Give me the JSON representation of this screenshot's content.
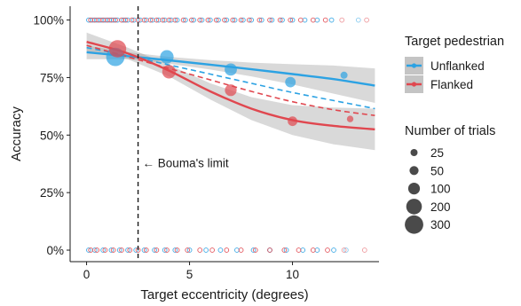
{
  "chart_data": {
    "type": "scatter",
    "xlabel": "Target eccentricity (degrees)",
    "ylabel": "Accuracy",
    "xlim": [
      -0.8,
      14.2
    ],
    "ylim": [
      -0.05,
      1.06
    ],
    "x_ticks": [
      0,
      5,
      10
    ],
    "x_tick_labels": [
      "0",
      "5",
      "10"
    ],
    "y_ticks": [
      0,
      0.25,
      0.5,
      0.75,
      1.0
    ],
    "y_tick_labels": [
      "0%",
      "25%",
      "50%",
      "75%",
      "100%"
    ],
    "grid": false,
    "annotation": {
      "text": "← Bouma's limit",
      "x": 2.5,
      "y": 0.38
    },
    "reference_line": {
      "x": 2.5,
      "style": "dashed"
    },
    "legend_colour": {
      "title": "Target pedestrian",
      "position": "right",
      "entries": [
        {
          "label": "Unflanked",
          "color": "#2ca2e3"
        },
        {
          "label": "Flanked",
          "color": "#e0474f"
        }
      ]
    },
    "legend_size": {
      "title": "Number of trials",
      "position": "right",
      "entries": [
        {
          "label": "25",
          "value": 25
        },
        {
          "label": "50",
          "value": 50
        },
        {
          "label": "100",
          "value": 100
        },
        {
          "label": "200",
          "value": 200
        },
        {
          "label": "300",
          "value": 300
        }
      ]
    },
    "series": [
      {
        "name": "Unflanked",
        "color": "#2ca2e3",
        "binned_means": [
          {
            "x": 1.4,
            "y": 0.84,
            "n": 300
          },
          {
            "x": 3.9,
            "y": 0.84,
            "n": 140
          },
          {
            "x": 7.0,
            "y": 0.785,
            "n": 110
          },
          {
            "x": 9.9,
            "y": 0.73,
            "n": 75
          },
          {
            "x": 12.5,
            "y": 0.76,
            "n": 25
          }
        ],
        "fit": {
          "x": [
            0,
            2,
            4,
            6,
            8,
            10,
            12,
            14
          ],
          "y": [
            0.86,
            0.843,
            0.825,
            0.806,
            0.786,
            0.765,
            0.743,
            0.715
          ]
        },
        "ci_lower": [
          0.83,
          0.83,
          0.81,
          0.785,
          0.755,
          0.72,
          0.68,
          0.64
        ],
        "ci_upper": [
          0.89,
          0.86,
          0.84,
          0.826,
          0.815,
          0.808,
          0.802,
          0.79
        ],
        "dashed_fit": {
          "x": [
            0,
            2,
            4,
            6,
            8,
            10,
            12,
            14
          ],
          "y": [
            0.88,
            0.845,
            0.805,
            0.765,
            0.725,
            0.685,
            0.65,
            0.615
          ]
        },
        "raw_trials": {
          "correct_x": [
            0.1,
            0.3,
            0.5,
            0.7,
            0.9,
            1.1,
            1.3,
            1.5,
            1.8,
            2.0,
            2.3,
            2.6,
            2.9,
            3.2,
            3.5,
            3.8,
            4.1,
            4.4,
            4.8,
            5.2,
            5.6,
            6.0,
            6.4,
            6.8,
            7.2,
            7.6,
            8.0,
            8.5,
            9.0,
            9.5,
            10.0,
            10.6,
            11.2,
            11.9,
            13.2
          ],
          "error_x": [
            0.1,
            0.4,
            0.8,
            1.2,
            1.6,
            2.0,
            2.4,
            2.8,
            3.3,
            3.8,
            4.3,
            5.0,
            5.8,
            6.5,
            7.3,
            8.1,
            8.9,
            9.7,
            10.5,
            11.2,
            12.0,
            12.6
          ]
        }
      },
      {
        "name": "Flanked",
        "color": "#e0474f",
        "binned_means": [
          {
            "x": 1.5,
            "y": 0.875,
            "n": 260
          },
          {
            "x": 4.0,
            "y": 0.775,
            "n": 140
          },
          {
            "x": 7.0,
            "y": 0.695,
            "n": 100
          },
          {
            "x": 10.0,
            "y": 0.56,
            "n": 60
          },
          {
            "x": 12.8,
            "y": 0.57,
            "n": 20
          }
        ],
        "fit": {
          "x": [
            0,
            2,
            4,
            6,
            8,
            10,
            12,
            14
          ],
          "y": [
            0.905,
            0.855,
            0.78,
            0.69,
            0.615,
            0.565,
            0.54,
            0.525
          ]
        },
        "ci_lower": [
          0.865,
          0.83,
          0.755,
          0.655,
          0.565,
          0.5,
          0.46,
          0.435
        ],
        "ci_upper": [
          0.945,
          0.88,
          0.805,
          0.725,
          0.665,
          0.63,
          0.62,
          0.615
        ],
        "dashed_fit": {
          "x": [
            0,
            2,
            4,
            6,
            8,
            10,
            12,
            14
          ],
          "y": [
            0.89,
            0.84,
            0.79,
            0.74,
            0.69,
            0.645,
            0.61,
            0.585
          ]
        },
        "raw_trials": {
          "correct_x": [
            0.2,
            0.4,
            0.6,
            0.8,
            1.0,
            1.2,
            1.4,
            1.7,
            1.9,
            2.2,
            2.5,
            2.8,
            3.1,
            3.4,
            3.7,
            4.0,
            4.3,
            4.7,
            5.1,
            5.5,
            5.9,
            6.3,
            6.7,
            7.1,
            7.5,
            7.9,
            8.4,
            8.9,
            9.4,
            9.9,
            10.4,
            11.0,
            11.6,
            12.4,
            13.6
          ],
          "error_x": [
            0.2,
            0.5,
            0.9,
            1.3,
            1.7,
            2.1,
            2.5,
            2.9,
            3.4,
            3.9,
            4.4,
            4.9,
            5.5,
            6.1,
            6.8,
            7.5,
            8.2,
            8.9,
            9.6,
            10.3,
            11.0,
            11.7,
            12.5,
            13.5
          ]
        }
      }
    ]
  }
}
